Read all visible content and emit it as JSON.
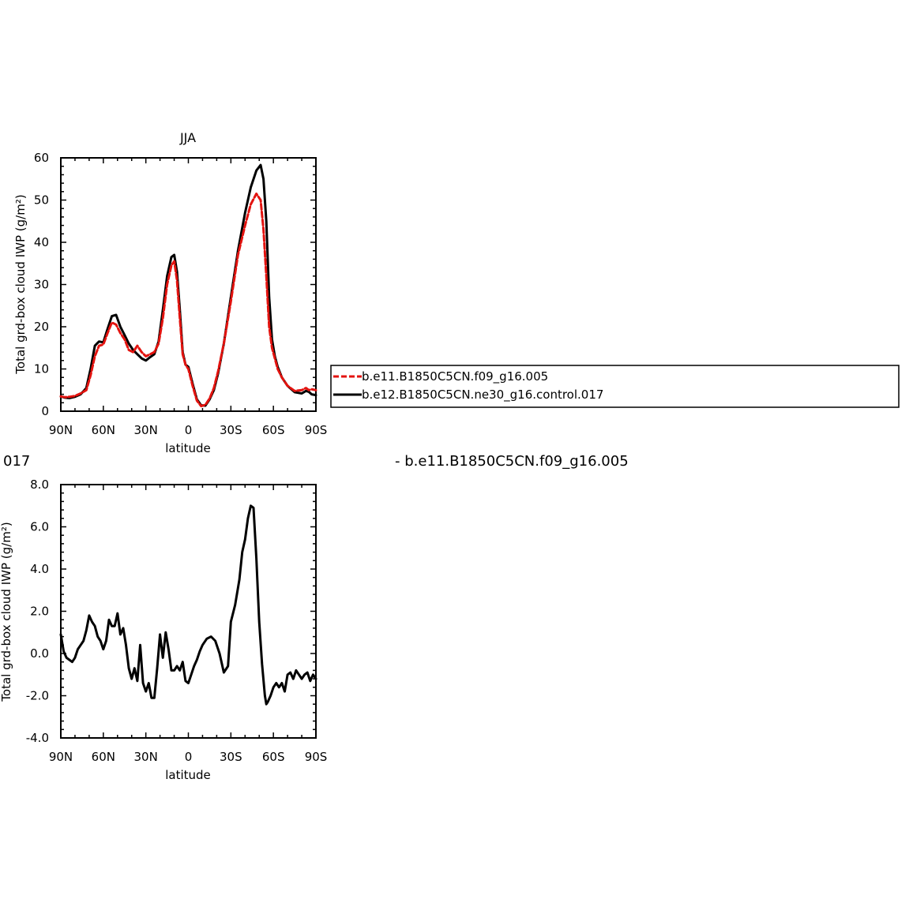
{
  "colors": {
    "ctrl": "#000000",
    "test": "#e3130f"
  },
  "chart_data": [
    {
      "type": "line",
      "title": "JJA",
      "xlabel": "latitude",
      "ylabel": "Total grd-box cloud IWP (g/m²)",
      "xticks": [
        {
          "lat": 90,
          "label": "90N"
        },
        {
          "lat": 60,
          "label": "60N"
        },
        {
          "lat": 30,
          "label": "30N"
        },
        {
          "lat": 0,
          "label": "0"
        },
        {
          "lat": -30,
          "label": "30S"
        },
        {
          "lat": -60,
          "label": "60S"
        },
        {
          "lat": -90,
          "label": "90S"
        }
      ],
      "ylim": [
        0,
        60
      ],
      "yticks": [
        0,
        10,
        20,
        30,
        40,
        50,
        60
      ],
      "ytick_labels": [
        "0",
        "10",
        "20",
        "30",
        "40",
        "50",
        "60"
      ],
      "legend": {
        "placement": "right of plot",
        "entries": [
          "b.e11.B1850C5CN.f09_g16.005",
          "b.e12.B1850C5CN.ne30_g16.control.017"
        ]
      },
      "series": [
        {
          "name": "b.e11.B1850C5CN.f09_g16.005",
          "style": "dashed",
          "color": "#e3130f",
          "x": [
            90,
            87,
            84,
            80,
            76,
            72,
            69,
            66,
            63,
            60,
            57,
            54,
            51,
            48,
            45,
            42,
            39,
            36,
            33,
            30,
            27,
            24,
            21,
            18,
            15,
            12,
            10,
            8,
            6,
            4,
            2,
            0,
            -3,
            -6,
            -9,
            -12,
            -15,
            -18,
            -21,
            -25,
            -30,
            -35,
            -40,
            -44,
            -48,
            -51,
            -53,
            -55,
            -57,
            -59,
            -61,
            -63,
            -66,
            -70,
            -75,
            -80,
            -83,
            -85,
            -87,
            -90
          ],
          "y": [
            3.5,
            3.3,
            3.4,
            3.6,
            4.2,
            5.0,
            8.5,
            13.0,
            15.5,
            15.8,
            18.5,
            21.0,
            20.5,
            18.5,
            17.0,
            14.5,
            14.0,
            15.5,
            14.0,
            13.0,
            13.5,
            14.0,
            16.0,
            22.0,
            30.0,
            34.5,
            35.5,
            31.0,
            22.0,
            13.5,
            11.0,
            10.0,
            6.0,
            2.5,
            1.2,
            1.5,
            3.0,
            5.5,
            9.5,
            16.0,
            26.0,
            37.0,
            44.0,
            49.0,
            51.5,
            50.0,
            43.0,
            32.0,
            20.0,
            15.0,
            12.5,
            10.0,
            8.0,
            6.0,
            4.8,
            5.0,
            5.5,
            5.0,
            5.2,
            5.0
          ]
        },
        {
          "name": "b.e12.B1850C5CN.ne30_g16.control.017",
          "style": "solid",
          "color": "#000000",
          "x": [
            90,
            87,
            84,
            80,
            76,
            72,
            69,
            66,
            63,
            60,
            57,
            54,
            51,
            48,
            45,
            42,
            39,
            36,
            33,
            30,
            27,
            24,
            21,
            18,
            15,
            12,
            10,
            8,
            6,
            4,
            2,
            0,
            -3,
            -6,
            -9,
            -12,
            -15,
            -18,
            -21,
            -25,
            -30,
            -35,
            -40,
            -44,
            -48,
            -51,
            -53,
            -55,
            -57,
            -59,
            -61,
            -63,
            -66,
            -70,
            -75,
            -80,
            -83,
            -85,
            -87,
            -90
          ],
          "y": [
            3.5,
            3.2,
            3.1,
            3.4,
            4.0,
            5.5,
            10.0,
            15.5,
            16.5,
            16.3,
            19.5,
            22.5,
            22.8,
            20.0,
            18.0,
            16.0,
            14.5,
            13.5,
            12.5,
            12.0,
            12.8,
            13.5,
            16.5,
            24.0,
            32.0,
            36.5,
            37.0,
            33.0,
            24.0,
            14.0,
            11.0,
            10.5,
            6.5,
            2.8,
            1.4,
            1.3,
            2.8,
            5.0,
            9.0,
            16.0,
            27.0,
            38.0,
            47.0,
            53.0,
            57.0,
            58.3,
            55.0,
            45.0,
            27.0,
            17.0,
            13.0,
            10.5,
            8.0,
            6.0,
            4.5,
            4.2,
            4.8,
            4.6,
            4.0,
            3.8
          ]
        }
      ]
    },
    {
      "type": "line",
      "title": "",
      "xlabel": "latitude",
      "ylabel": "Total grd-box cloud IWP (g/m²)",
      "xticks": [
        {
          "lat": 90,
          "label": "90N"
        },
        {
          "lat": 60,
          "label": "60N"
        },
        {
          "lat": 30,
          "label": "30N"
        },
        {
          "lat": 0,
          "label": "0"
        },
        {
          "lat": -30,
          "label": "30S"
        },
        {
          "lat": -60,
          "label": "60S"
        },
        {
          "lat": -90,
          "label": "90S"
        }
      ],
      "ylim": [
        -4,
        8
      ],
      "yticks": [
        -4,
        -2,
        0,
        2,
        4,
        6,
        8
      ],
      "ytick_labels": [
        "-4.0",
        "-2.0",
        "0.0",
        "2.0",
        "4.0",
        "6.0",
        "8.0"
      ],
      "header_left": "017",
      "header_right": "- b.e11.B1850C5CN.f09_g16.005",
      "series": [
        {
          "style": "solid",
          "color": "#000000",
          "x": [
            90,
            88,
            86,
            84,
            82,
            80,
            78,
            76,
            74,
            72,
            70,
            68,
            66,
            64,
            62,
            60,
            58,
            56,
            54,
            52,
            50,
            48,
            46,
            44,
            42,
            40,
            38,
            36,
            34,
            32,
            30,
            28,
            26,
            24,
            22,
            20,
            18,
            16,
            14,
            12,
            10,
            8,
            6,
            4,
            2,
            0,
            -2,
            -4,
            -6,
            -8,
            -10,
            -13,
            -16,
            -19,
            -22,
            -25,
            -28,
            -30,
            -33,
            -36,
            -38,
            -40,
            -42,
            -44,
            -46,
            -48,
            -50,
            -52,
            -54,
            -55,
            -56,
            -58,
            -60,
            -62,
            -64,
            -66,
            -68,
            -70,
            -72,
            -74,
            -76,
            -78,
            -80,
            -82,
            -84,
            -86,
            -88,
            -90
          ],
          "y": [
            0.9,
            0.1,
            -0.2,
            -0.3,
            -0.4,
            -0.2,
            0.2,
            0.4,
            0.6,
            1.1,
            1.8,
            1.5,
            1.3,
            0.8,
            0.6,
            0.2,
            0.6,
            1.6,
            1.3,
            1.3,
            1.9,
            0.9,
            1.2,
            0.4,
            -0.7,
            -1.2,
            -0.7,
            -1.3,
            0.4,
            -1.4,
            -1.8,
            -1.4,
            -2.1,
            -2.1,
            -0.7,
            0.9,
            -0.2,
            1.0,
            0.2,
            -0.8,
            -0.8,
            -0.6,
            -0.8,
            -0.4,
            -1.3,
            -1.4,
            -1.0,
            -0.6,
            -0.3,
            0.1,
            0.4,
            0.7,
            0.8,
            0.6,
            0.0,
            -0.9,
            -0.6,
            1.5,
            2.3,
            3.5,
            4.8,
            5.4,
            6.4,
            7.0,
            6.9,
            4.5,
            1.5,
            -0.5,
            -2.0,
            -2.4,
            -2.3,
            -2.0,
            -1.6,
            -1.4,
            -1.6,
            -1.4,
            -1.8,
            -1.0,
            -0.9,
            -1.2,
            -0.8,
            -1.0,
            -1.2,
            -1.0,
            -0.9,
            -1.3,
            -1.0,
            -1.2
          ]
        }
      ]
    }
  ]
}
